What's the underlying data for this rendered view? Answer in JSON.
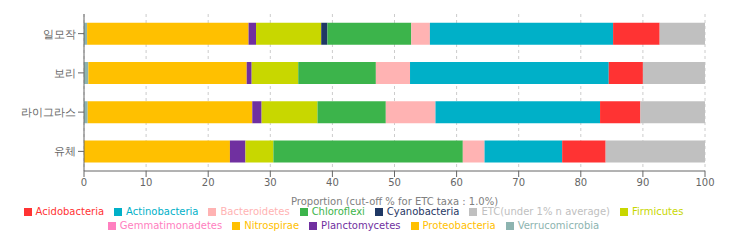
{
  "chart_data": {
    "type": "bar",
    "orientation": "horizontal",
    "stacked": true,
    "categories": [
      "일모작",
      "보리",
      "라이그라스",
      "유체"
    ],
    "series": [
      {
        "name": "Verrucomicrobia",
        "color": "#8db4b0",
        "values": [
          0.5,
          0.7,
          0.6,
          0.0
        ]
      },
      {
        "name": "Proteobacteria",
        "color": "#ffc000",
        "values": [
          26.0,
          25.5,
          26.5,
          23.5
        ]
      },
      {
        "name": "Planctomycetes",
        "color": "#7030a0",
        "values": [
          1.2,
          0.8,
          1.5,
          2.5
        ]
      },
      {
        "name": "Nitrospirae",
        "color": "#ffc000",
        "values": [
          null,
          null,
          null,
          null
        ]
      },
      {
        "name": "Gemmatimonadetes",
        "color": "#ff80c0",
        "values": [
          0.0,
          0.0,
          0.0,
          0.0
        ]
      },
      {
        "name": "Firmicutes",
        "color": "#c8d700",
        "values": [
          10.5,
          7.5,
          9.0,
          4.5
        ]
      },
      {
        "name": "Cyanobacteria",
        "color": "#1f3864",
        "values": [
          1.0,
          0.0,
          0.0,
          0.0
        ]
      },
      {
        "name": "Chloroflexi",
        "color": "#3cb44b",
        "values": [
          13.5,
          12.5,
          11.0,
          30.5
        ]
      },
      {
        "name": "Bacteroidetes",
        "color": "#ffb3b3",
        "values": [
          3.0,
          5.5,
          8.0,
          3.5
        ]
      },
      {
        "name": "Actinobacteria",
        "color": "#00b0c8",
        "values": [
          29.5,
          32.0,
          26.5,
          12.5
        ]
      },
      {
        "name": "Acidobacteria",
        "color": "#ff3333",
        "values": [
          7.5,
          5.5,
          6.5,
          7.0
        ]
      },
      {
        "name": "ETC(under 1% n average)",
        "color": "#c0c0c0",
        "values": [
          7.3,
          10.0,
          10.4,
          16.0
        ]
      }
    ],
    "xlabel": "Proportion (cut-off % for ETC taxa : 1.0%)",
    "xlim": [
      0,
      100
    ],
    "xticks": [
      0,
      10,
      20,
      30,
      40,
      50,
      60,
      70,
      80,
      90,
      100
    ],
    "grid": true,
    "legend": "bottom"
  }
}
